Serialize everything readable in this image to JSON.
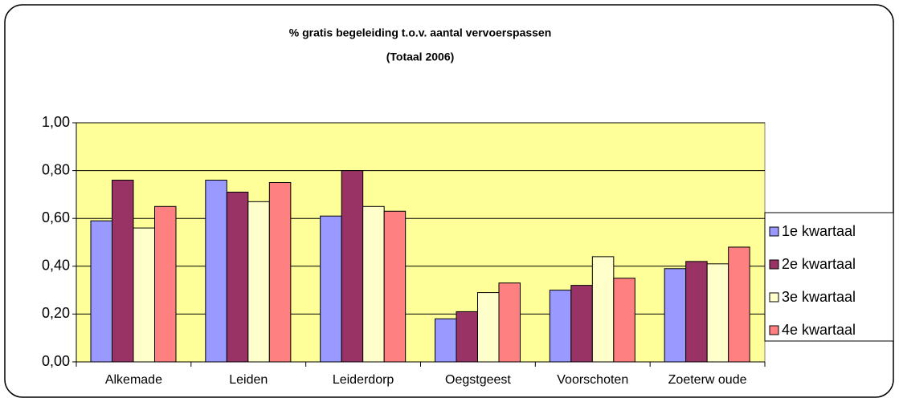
{
  "chart_data": {
    "type": "bar",
    "title": "% gratis begeleiding t.o.v. aantal vervoerspassen",
    "subtitle": "(Totaal 2006)",
    "categories": [
      "Alkemade",
      "Leiden",
      "Leiderdorp",
      "Oegstgeest",
      "Voorschoten",
      "Zoeterw oude"
    ],
    "series": [
      {
        "name": "1e kwartaal",
        "color": "#9999ff",
        "values": [
          0.59,
          0.76,
          0.61,
          0.18,
          0.3,
          0.39
        ]
      },
      {
        "name": "2e kwartaal",
        "color": "#993366",
        "values": [
          0.76,
          0.71,
          0.8,
          0.21,
          0.32,
          0.42
        ]
      },
      {
        "name": "3e kwartaal",
        "color": "#ffffcc",
        "values": [
          0.56,
          0.67,
          0.65,
          0.29,
          0.44,
          0.41
        ]
      },
      {
        "name": "4e kwartaal",
        "color": "#ff8080",
        "values": [
          0.65,
          0.75,
          0.63,
          0.33,
          0.35,
          0.48
        ]
      }
    ],
    "ylim": [
      0,
      1
    ],
    "yticks": [
      {
        "value": 0,
        "label": "0,00"
      },
      {
        "value": 0.2,
        "label": "0,20"
      },
      {
        "value": 0.4,
        "label": "0,40"
      },
      {
        "value": 0.6,
        "label": "0,60"
      },
      {
        "value": 0.8,
        "label": "0,80"
      },
      {
        "value": 1,
        "label": "1,00"
      }
    ],
    "grid": true,
    "plot_background": "#ffff99",
    "legend": "right"
  }
}
